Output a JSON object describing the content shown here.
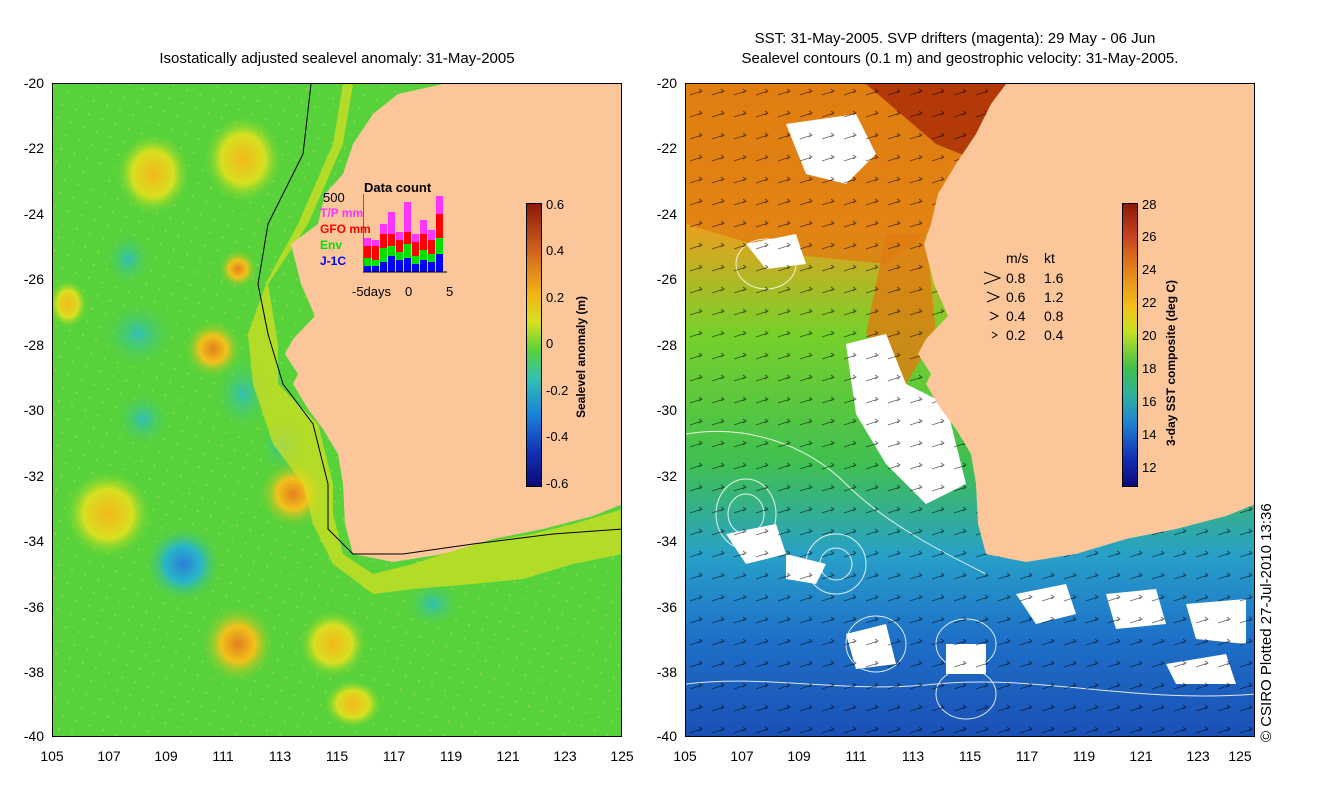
{
  "left_panel": {
    "title": "Isostatically adjusted sealevel anomaly: 31-May-2005",
    "y_ticks": [
      "-20",
      "-22",
      "-24",
      "-26",
      "-28",
      "-30",
      "-32",
      "-34",
      "-36",
      "-38",
      "-40"
    ],
    "x_ticks": [
      "105",
      "107",
      "109",
      "111",
      "113",
      "115",
      "117",
      "119",
      "121",
      "123",
      "125"
    ],
    "colorbar": {
      "label": "Sealevel anomaly (m)",
      "ticks": [
        "0.6",
        "0.4",
        "0.2",
        "0",
        "-0.2",
        "-0.4",
        "-0.6"
      ]
    },
    "data_count": {
      "title": "Data count",
      "max_label": "500",
      "series": [
        "T/P mm",
        "GFO mm",
        "Env",
        "J-1C"
      ],
      "x_labels": [
        "-5days",
        "0",
        "5"
      ]
    }
  },
  "right_panel": {
    "title_line1": "SST: 31-May-2005. SVP drifters (magenta): 29 May - 06 Jun",
    "title_line2": "Sealevel contours (0.1 m) and geostrophic velocity: 31-May-2005.",
    "y_ticks": [
      "-20",
      "-22",
      "-24",
      "-26",
      "-28",
      "-30",
      "-32",
      "-34",
      "-36",
      "-38",
      "-40"
    ],
    "x_ticks": [
      "105",
      "107",
      "109",
      "111",
      "113",
      "115",
      "117",
      "119",
      "121",
      "123",
      "125"
    ],
    "colorbar": {
      "label": "3-day SST composite (deg C)",
      "ticks": [
        "28",
        "26",
        "24",
        "22",
        "20",
        "18",
        "16",
        "14",
        "12"
      ]
    },
    "velocity_legend": {
      "header_ms": "m/s",
      "header_kt": "kt",
      "rows": [
        {
          "ms": "0.8",
          "kt": "1.6"
        },
        {
          "ms": "0.6",
          "kt": "1.2"
        },
        {
          "ms": "0.4",
          "kt": "0.8"
        },
        {
          "ms": "0.2",
          "kt": "0.4"
        }
      ]
    }
  },
  "credit": "© CSIRO Plotted 27-Jul-2010 13:36",
  "colors": {
    "land": "#fbc79a",
    "ssa_base": "#58d23a",
    "ocean_warm": "#e68a1a",
    "ocean_cold": "#1e6fc8"
  }
}
